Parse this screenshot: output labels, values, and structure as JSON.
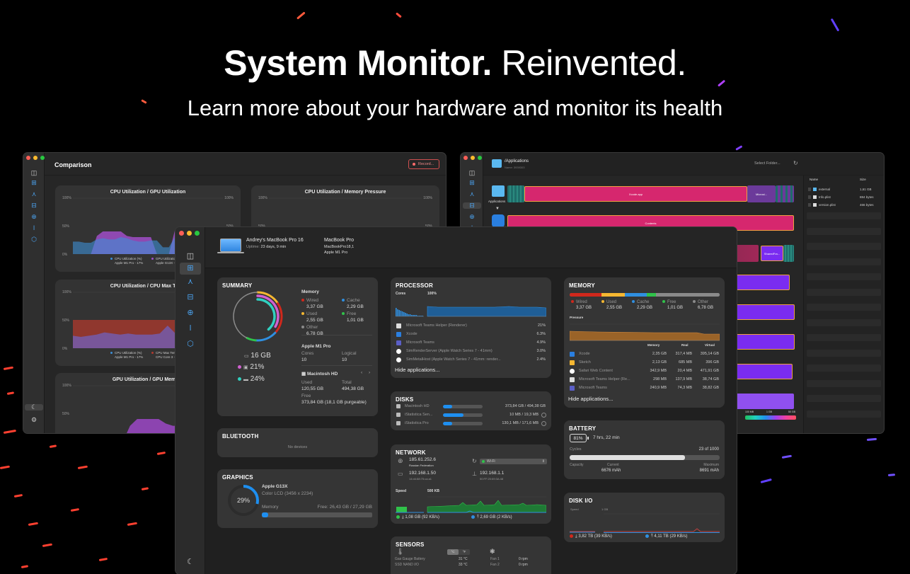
{
  "hero": {
    "title_bold": "System Monitor.",
    "title_light": "Reinvented.",
    "subtitle": "Learn more about your hardware and monitor its health"
  },
  "colors": {
    "accent": "#1e8ff0",
    "wired": "#d0281c",
    "used": "#f5b731",
    "cache": "#2f8fe0",
    "free": "#30c24a",
    "other": "#8a8a8a",
    "treemap_pink": "#d6276e",
    "treemap_purple": "#7a2cf0",
    "record_red": "#ff6b6b"
  },
  "comparison_window": {
    "title": "Comparison",
    "record_label": "Record...",
    "sidebar_icons": [
      "sidebar-toggle-icon",
      "dashboard-icon",
      "processor-icon",
      "disk-icon",
      "network-icon",
      "thermometer-icon",
      "graphics-icon",
      "moon-icon",
      "gear-icon"
    ],
    "charts": [
      {
        "title": "CPU Utilization / GPU Utilization",
        "y_ticks": [
          "100%",
          "50%",
          "0%"
        ],
        "legend": [
          {
            "name": "CPU Utilization (%)",
            "sub": "Apple M1 Pro - 17%",
            "color": "#3d8fd6"
          },
          {
            "name": "GPU Utilization",
            "sub": "Apple G13X -",
            "color": "#a04ec8"
          }
        ]
      },
      {
        "title": "CPU Utilization / Memory Pressure",
        "y_ticks": [
          "100%",
          "50%"
        ]
      },
      {
        "title": "CPU Utilization / CPU Max Temp",
        "y_ticks": [
          "100%",
          "50%",
          "0%"
        ],
        "legend": [
          {
            "name": "CPU Utilization (%)",
            "sub": "Apple M1 Pro - 17%",
            "color": "#3d8fd6"
          },
          {
            "name": "CPU Max Tem",
            "sub": "CPU Core 3 -",
            "color": "#b03a2e"
          }
        ]
      },
      {
        "title": "GPU Utilization / GPU Memory",
        "y_ticks": [
          "100%",
          "50%"
        ]
      }
    ]
  },
  "disk_window": {
    "path": "/Applications",
    "subtitle": "Name: 3939303",
    "select_folder": "Select Folder...",
    "root_label": "Applications",
    "blocks": [
      "Xcode.app",
      "Microsi...",
      "Contents",
      "SharedFra..."
    ],
    "file_list": {
      "columns": [
        "Name",
        "Size"
      ],
      "rows": [
        {
          "name": "external",
          "size": "1,61 GB"
        },
        {
          "name": "Info.plist",
          "size": "884 bytes"
        },
        {
          "name": "version.plist",
          "size": "466 bytes"
        }
      ]
    },
    "scale": [
      "100 MB",
      "1 GB",
      "50 GB"
    ]
  },
  "main": {
    "device": {
      "name": "Andrey's MacBook Pro 16",
      "uptime_label": "Uptime:",
      "uptime": "23 days, 9 min",
      "model": "MacBook Pro",
      "model_id": "MacBookPro18,1",
      "chip": "Apple M1 Pro"
    },
    "sidebar_icons": [
      "sidebar-toggle-icon",
      "dashboard-icon",
      "processor-icon",
      "disk-icon",
      "network-icon",
      "thermometer-icon",
      "graphics-icon",
      "moon-icon"
    ],
    "summary": {
      "title": "SUMMARY",
      "memory_total": "16 GB",
      "cpu": "21%",
      "disk": "24%",
      "memory_title": "Memory",
      "memory": [
        {
          "label": "Wired",
          "value": "3,37 GB",
          "color": "#d0281c"
        },
        {
          "label": "Cache",
          "value": "2,29 GB",
          "color": "#2f8fe0"
        },
        {
          "label": "Used",
          "value": "2,55 GB",
          "color": "#f5b731"
        },
        {
          "label": "Free",
          "value": "1,01 GB",
          "color": "#30c24a"
        },
        {
          "label": "Other",
          "value": "6,78 GB",
          "color": "#8a8a8a"
        }
      ],
      "chip": "Apple M1 Pro",
      "cores_label": "Cores",
      "cores": "10",
      "logical_label": "Logical",
      "logical": "10",
      "disk_name": "Macintosh HD",
      "used_label": "Used",
      "used": "120,55 GB",
      "total_label": "Total",
      "total": "494,38 GB",
      "free_label": "Free",
      "free": "373,84 GB (18,1 GB purgeable)"
    },
    "bluetooth": {
      "title": "BLUETOOTH",
      "empty": "No devices"
    },
    "graphics": {
      "title": "GRAPHICS",
      "percent": "29%",
      "usage": 0.29,
      "gpu": "Apple G13X",
      "display": "Color LCD (3456 x 2234)",
      "memory_label": "Memory",
      "memory_free": "Free: 26,43 GB / 27,29 GB",
      "memory_used_fraction": 0.03
    },
    "processor": {
      "title": "PROCESSOR",
      "cores_label": "Cores",
      "scale": "100%",
      "apps": [
        {
          "name": "Microsoft Teams Helper (Renderer)",
          "value": "21%",
          "icon": "teams-helper-icon"
        },
        {
          "name": "Xcode",
          "value": "6.3%",
          "icon": "xcode-icon"
        },
        {
          "name": "Microsoft Teams",
          "value": "4.9%",
          "icon": "teams-icon"
        },
        {
          "name": "SimRenderServer (Apple Watch Series 7 - 41mm)",
          "value": "3.0%",
          "icon": "shield-icon"
        },
        {
          "name": "SimMetalHost (Apple Watch Series 7 - 41mm: render...",
          "value": "2.4%",
          "icon": "shield-icon"
        }
      ],
      "hide": "Hide applications..."
    },
    "disks": {
      "title": "DISKS",
      "items": [
        {
          "name": "Macintosh HD",
          "value": "373,84 GB / 494,38 GB",
          "fraction": 0.24
        },
        {
          "name": "iStatistica Sen...",
          "value": "10 MB / 19,3 MB",
          "fraction": 0.52
        },
        {
          "name": "iStatistica Pro",
          "value": "130,1 MB / 171,6 MB",
          "fraction": 0.24
        }
      ]
    },
    "network": {
      "title": "NETWORK",
      "public_ip": "185.61.252.6",
      "country": "Russian Federation",
      "interface": "Wi-Fi",
      "local_ip": "192.168.1.50",
      "local_mac": "14:d4:88:75:ca:a1",
      "router_ip": "192.168.1.1",
      "router_mac": "50:FF:20:69:3A:48",
      "speed_label": "Speed",
      "scale": "500 KB",
      "download": "1,08 GB (92 KB/s)",
      "upload": "2,69 GB (2 KB/s)"
    },
    "sensors": {
      "title": "SENSORS",
      "unit_c": "°C",
      "unit_f": "°F",
      "temps": [
        {
          "name": "Gas Gauge Battery",
          "value": "31 °C"
        },
        {
          "name": "SSD NAND I/O",
          "value": "33 °C"
        }
      ],
      "fans": [
        {
          "name": "Fan 1",
          "value": "0 rpm"
        },
        {
          "name": "Fan 2",
          "value": "0 rpm"
        }
      ]
    },
    "memory": {
      "title": "MEMORY",
      "pressure_label": "Pressure",
      "columns": [
        "Memory",
        "Real",
        "Virtual"
      ],
      "apps": [
        {
          "name": "Xcode",
          "memory": "2,35 GB",
          "real": "317,4 MB",
          "virtual": "395,14 GB"
        },
        {
          "name": "Sketch",
          "memory": "2,13 GB",
          "real": "685 MB",
          "virtual": "396 GB"
        },
        {
          "name": "Safari Web Content",
          "memory": "342,9 MB",
          "real": "20,4 MB",
          "virtual": "471,91 GB"
        },
        {
          "name": "Microsoft Teams Helper (Re...",
          "memory": "298 MB",
          "real": "137,9 MB",
          "virtual": "38,74 GB"
        },
        {
          "name": "Microsoft Teams",
          "memory": "240,9 MB",
          "real": "74,3 MB",
          "virtual": "38,82 GB"
        }
      ],
      "hide": "Hide applications..."
    },
    "battery": {
      "title": "BATTERY",
      "percent": "81%",
      "time": "7 hrs, 22 min",
      "cycles_label": "Cycles",
      "cycles": "23 of 1000",
      "cycles_fraction": 0.023,
      "capacity_label": "Capacity",
      "current_label": "Current",
      "current": "6676 mAh",
      "max_label": "Maximum",
      "max": "8691 mAh",
      "capacity_fraction": 0.77
    },
    "disk_io": {
      "title": "DISK I/O",
      "speed_label": "Speed",
      "scale": "1 GB",
      "read": "3,82 TB (39 KB/s)",
      "write": "4,11 TB (29 KB/s)"
    }
  }
}
